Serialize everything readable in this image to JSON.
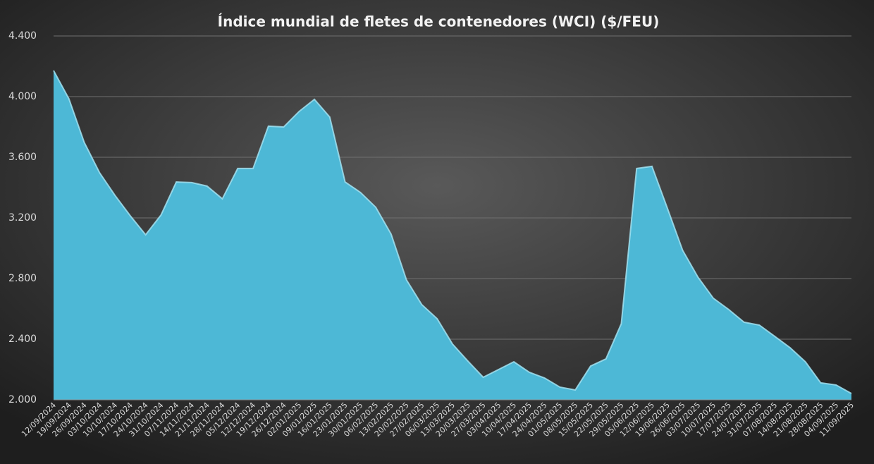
{
  "chart_data": {
    "type": "area",
    "title": "Índice mundial de fletes de contenedores (WCI) ($/FEU)",
    "color": "#4db8d6",
    "categories": [
      "12/09/2024",
      "19/09/2024",
      "26/09/2024",
      "03/10/2024",
      "10/10/2024",
      "17/10/2024",
      "24/10/2024",
      "31/10/2024",
      "07/11/2024",
      "14/11/2024",
      "21/11/2024",
      "28/11/2024",
      "05/12/2024",
      "12/12/2024",
      "19/12/2024",
      "26/12/2024",
      "02/01/2025",
      "09/01/2025",
      "16/01/2025",
      "23/01/2025",
      "30/01/2025",
      "06/02/2025",
      "13/02/2025",
      "20/02/2025",
      "27/02/2025",
      "06/03/2025",
      "13/03/2025",
      "20/03/2025",
      "27/03/2025",
      "03/04/2025",
      "10/04/2025",
      "17/04/2025",
      "24/04/2025",
      "01/05/2025",
      "08/05/2025",
      "15/05/2025",
      "22/05/2025",
      "29/05/2025",
      "05/06/2025",
      "12/06/2025",
      "19/06/2025",
      "26/06/2025",
      "03/07/2025",
      "10/07/2025",
      "17/07/2025",
      "24/07/2025",
      "31/07/2025",
      "07/08/2025",
      "14/08/2025",
      "21/08/2025",
      "28/08/2025",
      "04/09/2025",
      "11/09/2025"
    ],
    "values": [
      4172,
      3986,
      3698,
      3498,
      3349,
      3214,
      3089,
      3219,
      3437,
      3433,
      3410,
      3326,
      3526,
      3526,
      3805,
      3800,
      3902,
      3982,
      3865,
      3437,
      3368,
      3270,
      3093,
      2791,
      2628,
      2535,
      2368,
      2256,
      2149,
      2200,
      2251,
      2182,
      2144,
      2084,
      2065,
      2223,
      2270,
      2502,
      3526,
      3540,
      3265,
      2986,
      2809,
      2670,
      2596,
      2512,
      2493,
      2419,
      2344,
      2251,
      2112,
      2098,
      2042
    ],
    "ylim": [
      2000,
      4400
    ],
    "yticks": [
      {
        "value": 2000,
        "label": "2.000"
      },
      {
        "value": 2400,
        "label": "2.400"
      },
      {
        "value": 2800,
        "label": "2.800"
      },
      {
        "value": 3200,
        "label": "3.200"
      },
      {
        "value": 3600,
        "label": "3.600"
      },
      {
        "value": 4000,
        "label": "4.000"
      },
      {
        "value": 4400,
        "label": "4.400"
      }
    ],
    "grid": true
  }
}
